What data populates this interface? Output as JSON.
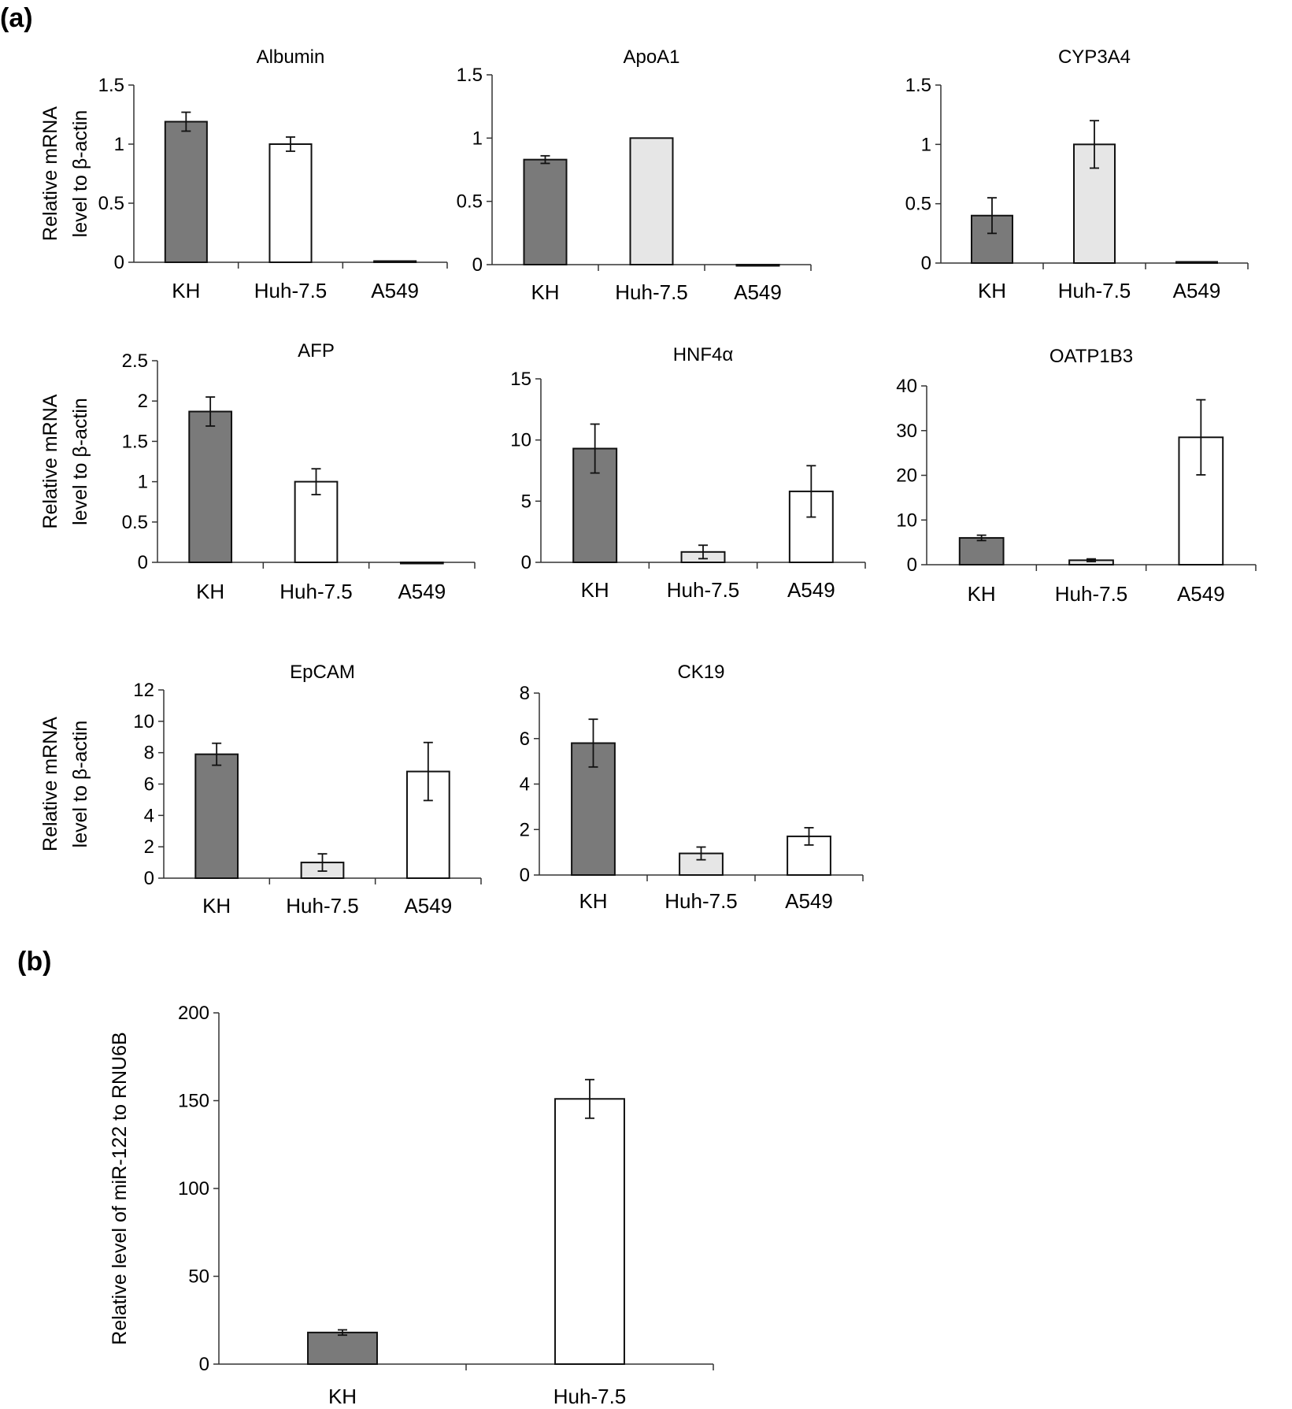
{
  "panels": {
    "a": "(a)",
    "b": "(b)"
  },
  "colors": {
    "dark": "#7a7a7a",
    "light": "#e6e6e6",
    "white": "#ffffff",
    "axis": "#333333"
  },
  "chart_data": [
    {
      "type": "bar",
      "title": "Albumin",
      "ylabel": "Relative mRNA level to β-actin",
      "ylabel_lines": [
        "Relative mRNA",
        "level to β-actin"
      ],
      "categories": [
        "KH",
        "Huh-7.5",
        "A549"
      ],
      "values": [
        1.19,
        1.0,
        0.01
      ],
      "errors": [
        0.08,
        0.06,
        0.0
      ],
      "colors": [
        "dark",
        "white",
        "dark"
      ],
      "ylim": [
        0,
        1.5
      ],
      "yticks": [
        0,
        0.5,
        1,
        1.5
      ],
      "ytick_labels": [
        "0",
        "0.5",
        "1",
        "1.5"
      ]
    },
    {
      "type": "bar",
      "title": "ApoA1",
      "ylabel": "",
      "categories": [
        "KH",
        "Huh-7.5",
        "A549"
      ],
      "values": [
        0.83,
        1.0,
        0.0
      ],
      "errors": [
        0.03,
        0.0,
        0.0
      ],
      "colors": [
        "dark",
        "light",
        "white"
      ],
      "ylim": [
        0,
        1.5
      ],
      "yticks": [
        0,
        0.5,
        1,
        1.5
      ],
      "ytick_labels": [
        "0",
        "0.5",
        "1",
        "1.5"
      ]
    },
    {
      "type": "bar",
      "title": "CYP3A4",
      "ylabel": "",
      "categories": [
        "KH",
        "Huh-7.5",
        "A549"
      ],
      "values": [
        0.4,
        1.0,
        0.01
      ],
      "errors": [
        0.15,
        0.2,
        0.0
      ],
      "colors": [
        "dark",
        "light",
        "dark"
      ],
      "ylim": [
        0,
        1.5
      ],
      "yticks": [
        0,
        0.5,
        1,
        1.5
      ],
      "ytick_labels": [
        "0",
        "0.5",
        "1",
        "1.5"
      ]
    },
    {
      "type": "bar",
      "title": "AFP",
      "ylabel": "Relative mRNA level to β-actin",
      "ylabel_lines": [
        "Relative mRNA",
        "level to β-actin"
      ],
      "categories": [
        "KH",
        "Huh-7.5",
        "A549"
      ],
      "values": [
        1.87,
        1.0,
        0.0
      ],
      "errors": [
        0.18,
        0.16,
        0.0
      ],
      "colors": [
        "dark",
        "white",
        "white"
      ],
      "ylim": [
        0,
        2.5
      ],
      "yticks": [
        0,
        0.5,
        1,
        1.5,
        2,
        2.5
      ],
      "ytick_labels": [
        "0",
        "0.5",
        "1",
        "1.5",
        "2",
        "2.5"
      ]
    },
    {
      "type": "bar",
      "title": "HNF4α",
      "ylabel": "",
      "categories": [
        "KH",
        "Huh-7.5",
        "A549"
      ],
      "values": [
        9.3,
        0.85,
        5.8
      ],
      "errors": [
        2.0,
        0.55,
        2.1
      ],
      "colors": [
        "dark",
        "light",
        "white"
      ],
      "ylim": [
        0,
        15
      ],
      "yticks": [
        0,
        5,
        10,
        15
      ],
      "ytick_labels": [
        "0",
        "5",
        "10",
        "15"
      ]
    },
    {
      "type": "bar",
      "title": "OATP1B3",
      "ylabel": "",
      "categories": [
        "KH",
        "Huh-7.5",
        "A549"
      ],
      "values": [
        6.0,
        1.0,
        28.5
      ],
      "errors": [
        0.6,
        0.3,
        8.4
      ],
      "colors": [
        "dark",
        "light",
        "white"
      ],
      "ylim": [
        0,
        40
      ],
      "yticks": [
        0,
        10,
        20,
        30,
        40
      ],
      "ytick_labels": [
        "0",
        "10",
        "20",
        "30",
        "40"
      ]
    },
    {
      "type": "bar",
      "title": "EpCAM",
      "ylabel": "Relative mRNA level to β-actin",
      "ylabel_lines": [
        "Relative mRNA",
        "level to β-actin"
      ],
      "categories": [
        "KH",
        "Huh-7.5",
        "A549"
      ],
      "values": [
        7.9,
        1.0,
        6.8
      ],
      "errors": [
        0.7,
        0.55,
        1.85
      ],
      "colors": [
        "dark",
        "light",
        "white"
      ],
      "ylim": [
        0,
        12
      ],
      "yticks": [
        0,
        2,
        4,
        6,
        8,
        10,
        12
      ],
      "ytick_labels": [
        "0",
        "2",
        "4",
        "6",
        "8",
        "10",
        "12"
      ]
    },
    {
      "type": "bar",
      "title": "CK19",
      "ylabel": "",
      "categories": [
        "KH",
        "Huh-7.5",
        "A549"
      ],
      "values": [
        5.8,
        0.95,
        1.7
      ],
      "errors": [
        1.05,
        0.28,
        0.38
      ],
      "colors": [
        "dark",
        "light",
        "white"
      ],
      "ylim": [
        0,
        8
      ],
      "yticks": [
        0,
        2,
        4,
        6,
        8
      ],
      "ytick_labels": [
        "0",
        "2",
        "4",
        "6",
        "8"
      ]
    },
    {
      "type": "bar",
      "title": "",
      "ylabel": "Relative level of miR-122 to RNU6B",
      "ylabel_lines": [
        "Relative level of miR-122 to RNU6B"
      ],
      "categories": [
        "KH",
        "Huh-7.5"
      ],
      "values": [
        18,
        151
      ],
      "errors": [
        1.5,
        11
      ],
      "colors": [
        "dark",
        "white"
      ],
      "ylim": [
        0,
        200
      ],
      "yticks": [
        0,
        50,
        100,
        150,
        200
      ],
      "ytick_labels": [
        "0",
        "50",
        "100",
        "150",
        "200"
      ]
    }
  ]
}
